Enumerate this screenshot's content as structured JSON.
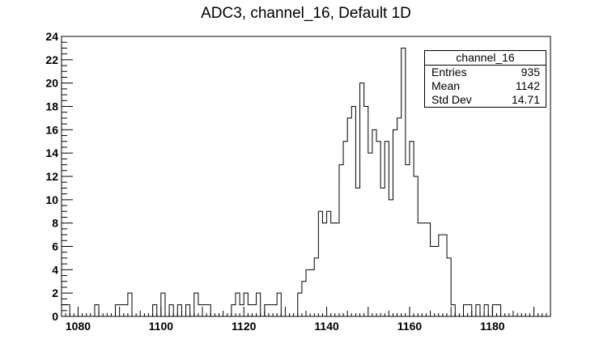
{
  "chart_data": {
    "type": "bar",
    "title": "ADC3, channel_16, Default 1D",
    "xlabel": "",
    "ylabel": "",
    "xlim": [
      1076,
      1194
    ],
    "ylim": [
      0,
      24
    ],
    "bin_width": 1,
    "bin_start": 1076,
    "counts": [
      1,
      1,
      0,
      0,
      0,
      0,
      0,
      0,
      1,
      0,
      0,
      0,
      0,
      1,
      1,
      1,
      2,
      0,
      0,
      0,
      0,
      0,
      1,
      0,
      2,
      0,
      1,
      0,
      1,
      0,
      1,
      0,
      2,
      1,
      1,
      1,
      0,
      0,
      0,
      0,
      0,
      1,
      2,
      1,
      2,
      1,
      1,
      2,
      0,
      1,
      1,
      1,
      2,
      0,
      0,
      0,
      0,
      2,
      3,
      4,
      4,
      5,
      9,
      8,
      9,
      8,
      8,
      13,
      15,
      17,
      18,
      11,
      20,
      18,
      14,
      16,
      15,
      11,
      15,
      10,
      16,
      17,
      23,
      13,
      15,
      12,
      8,
      8,
      8,
      6,
      6,
      7,
      7,
      5,
      1,
      0,
      0,
      1,
      1,
      0,
      1,
      0,
      1,
      0,
      1,
      1,
      0,
      0,
      0,
      0,
      0,
      0,
      0,
      0,
      0,
      0,
      0,
      0
    ],
    "x_ticks": [
      1080,
      1100,
      1120,
      1140,
      1160,
      1180
    ],
    "y_ticks": [
      0,
      2,
      4,
      6,
      8,
      10,
      12,
      14,
      16,
      18,
      20,
      22,
      24
    ],
    "stats": {
      "name": "channel_16",
      "entries_label": "Entries",
      "entries": "935",
      "mean_label": "Mean",
      "mean": "1142",
      "stddev_label": "Std Dev",
      "stddev": "14.71"
    },
    "grid": false,
    "legend_position": "top-right",
    "line_color": "#000000"
  }
}
